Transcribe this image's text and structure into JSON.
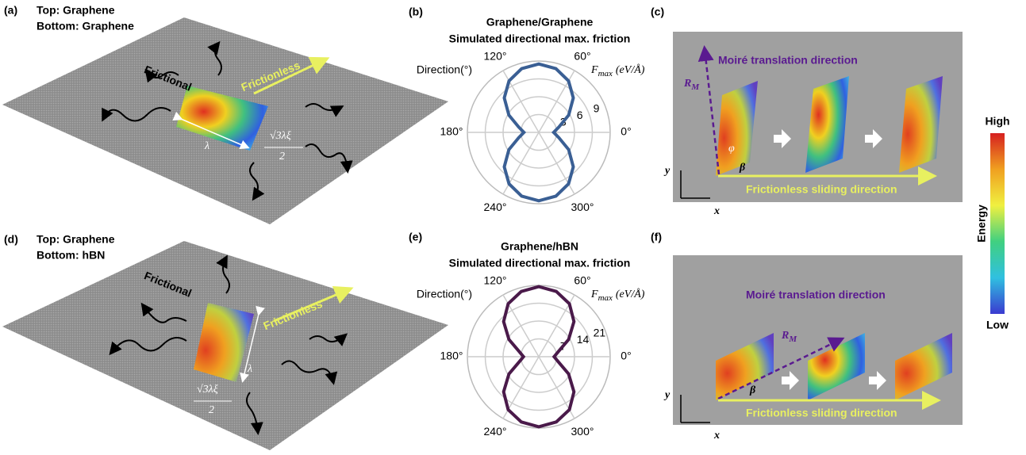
{
  "panels": {
    "a": {
      "label": "(a)",
      "top": "Top: Graphene",
      "bottom": "Bottom: Graphene",
      "frictional": "Frictional",
      "frictionless": "Frictionless",
      "lambda": "λ",
      "width_num": "√3λξ",
      "width_den": "2"
    },
    "b": {
      "label": "(b)"
    },
    "c": {
      "label": "(c)",
      "moire": "Moiré translation direction",
      "rm": "R",
      "rm_sub": "M",
      "phi": "φ",
      "beta": "β",
      "y": "y",
      "x": "x",
      "sliding": "Frictionless sliding direction"
    },
    "d": {
      "label": "(d)",
      "top": "Top: Graphene",
      "bottom": "Bottom: hBN",
      "frictional": "Frictional",
      "frictionless": "Frictionless",
      "lambda": "λ",
      "width_num": "√3λξ",
      "width_den": "2"
    },
    "e": {
      "label": "(e)"
    },
    "f": {
      "label": "(f)",
      "moire": "Moiré translation direction",
      "rm": "R",
      "rm_sub": "M",
      "beta": "β",
      "y": "y",
      "x": "x",
      "sliding": "Frictionless sliding direction"
    }
  },
  "colorbar": {
    "high": "High",
    "low": "Low",
    "title": "Energy"
  },
  "chart_data": [
    {
      "type": "polar",
      "title": "Graphene/Graphene",
      "subtitle": "Simulated directional max. friction",
      "theta_label": "Direction(°)",
      "r_label": "F",
      "r_label_sub": "max",
      "r_label_unit": "(eV/Å)",
      "color": "#3a5f94",
      "theta": [
        0,
        15,
        30,
        45,
        60,
        75,
        90,
        105,
        120,
        135,
        150,
        165,
        180,
        195,
        210,
        225,
        240,
        255,
        270,
        285,
        300,
        315,
        330,
        345
      ],
      "values": [
        2.5,
        3.5,
        5.8,
        8.2,
        10.0,
        11.1,
        11.5,
        11.1,
        10.0,
        8.2,
        5.8,
        3.5,
        2.5,
        3.5,
        5.8,
        8.2,
        10.0,
        11.1,
        11.5,
        11.1,
        10.0,
        8.2,
        5.8,
        3.5
      ],
      "rlim": [
        0,
        12
      ],
      "rticks": [
        3,
        6,
        9
      ],
      "thetaticks": [
        {
          "value": 0,
          "label": "0°"
        },
        {
          "value": 60,
          "label": "60°"
        },
        {
          "value": 120,
          "label": "120°"
        },
        {
          "value": 180,
          "label": "180°"
        },
        {
          "value": 240,
          "label": "240°"
        },
        {
          "value": 300,
          "label": "300°"
        }
      ]
    },
    {
      "type": "polar",
      "title": "Graphene/hBN",
      "subtitle": "Simulated directional max. friction",
      "theta_label": "Direction(°)",
      "r_label": "F",
      "r_label_sub": "max",
      "r_label_unit": "(eV/Å)",
      "color": "#4a1a4a",
      "theta": [
        0,
        15,
        30,
        45,
        60,
        75,
        90,
        105,
        120,
        135,
        150,
        165,
        180,
        195,
        210,
        225,
        240,
        255,
        270,
        285,
        300,
        315,
        330,
        345
      ],
      "values": [
        6,
        8,
        13.5,
        19.5,
        24,
        26.5,
        27.5,
        26.5,
        24,
        19.5,
        13.5,
        8,
        6,
        8,
        13.5,
        19.5,
        24,
        26.5,
        27.5,
        26.5,
        24,
        19.5,
        13.5,
        8
      ],
      "rlim": [
        0,
        28
      ],
      "rticks": [
        7,
        14,
        21
      ],
      "thetaticks": [
        {
          "value": 0,
          "label": "0°"
        },
        {
          "value": 60,
          "label": "60°"
        },
        {
          "value": 120,
          "label": "120°"
        },
        {
          "value": 180,
          "label": "180°"
        },
        {
          "value": 240,
          "label": "240°"
        },
        {
          "value": 300,
          "label": "300°"
        }
      ]
    }
  ]
}
